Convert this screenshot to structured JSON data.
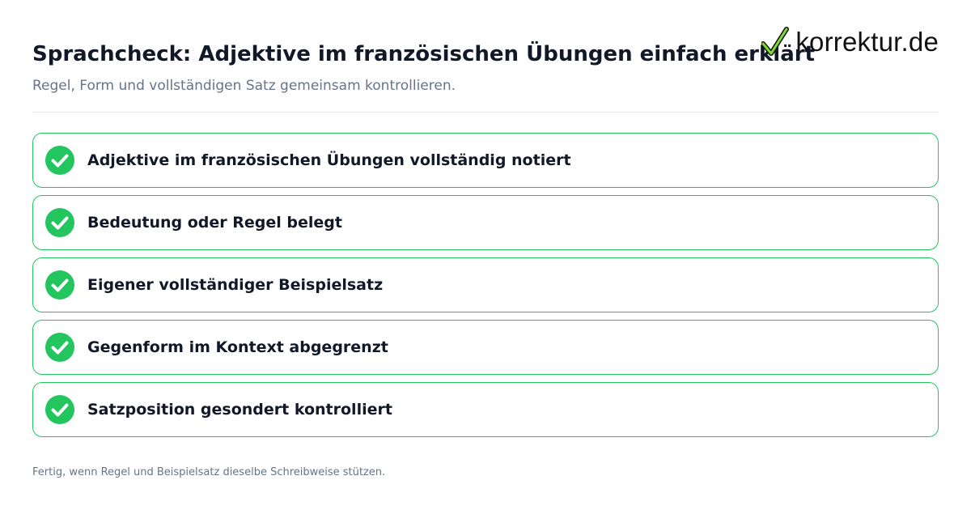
{
  "header": {
    "title": "Sprachcheck: Adjektive im französischen Übungen einfach erklärt",
    "subtitle": "Regel, Form und vollständigen Satz gemeinsam kontrollieren."
  },
  "brand": {
    "logo_text": "korrektur.de",
    "logo_icon": "checkmark-icon",
    "accent_color": "#22c55e"
  },
  "checklist": {
    "items": [
      {
        "label": "Adjektive im französischen Übungen vollständig notiert",
        "checked": true,
        "icon": "check-circle-icon"
      },
      {
        "label": "Bedeutung oder Regel belegt",
        "checked": true,
        "icon": "check-circle-icon"
      },
      {
        "label": "Eigener vollständiger Beispielsatz",
        "checked": true,
        "icon": "check-circle-icon"
      },
      {
        "label": "Gegenform im Kontext abgegrenzt",
        "checked": true,
        "icon": "check-circle-icon"
      },
      {
        "label": "Satzposition gesondert kontrolliert",
        "checked": true,
        "icon": "check-circle-icon"
      }
    ]
  },
  "footer": {
    "note": "Fertig, wenn Regel und Beispielsatz dieselbe Schreibweise stützen."
  }
}
